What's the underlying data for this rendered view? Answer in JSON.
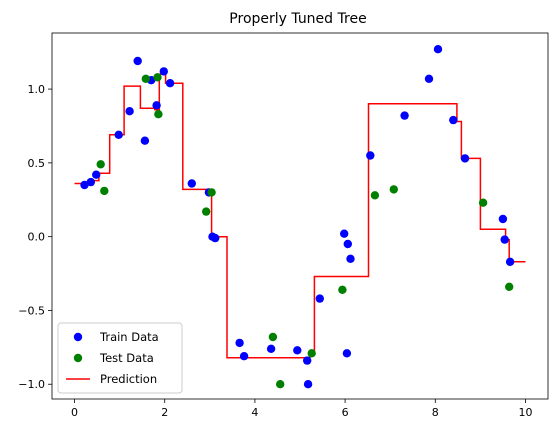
{
  "chart_data": {
    "type": "scatter",
    "title": "Properly Tuned Tree",
    "xlabel": "",
    "ylabel": "",
    "xlim": [
      -0.5,
      10.5
    ],
    "ylim": [
      -1.1,
      1.38
    ],
    "xticks": [
      0,
      2,
      4,
      6,
      8,
      10
    ],
    "yticks": [
      -1.0,
      -0.5,
      0.0,
      0.5,
      1.0
    ],
    "xtick_labels": [
      "0",
      "2",
      "4",
      "6",
      "8",
      "10"
    ],
    "ytick_labels": [
      "−1.0",
      "−0.5",
      "0.0",
      "0.5",
      "1.0"
    ],
    "grid": false,
    "legend_position": "lower-left",
    "series": [
      {
        "name": "Train Data",
        "kind": "scatter",
        "color": "#0000ff",
        "points": [
          [
            0.22,
            0.35
          ],
          [
            0.36,
            0.37
          ],
          [
            0.48,
            0.42
          ],
          [
            0.98,
            0.69
          ],
          [
            1.22,
            0.85
          ],
          [
            1.4,
            1.19
          ],
          [
            1.56,
            0.65
          ],
          [
            1.7,
            1.06
          ],
          [
            1.82,
            0.89
          ],
          [
            1.98,
            1.12
          ],
          [
            2.12,
            1.04
          ],
          [
            2.6,
            0.36
          ],
          [
            2.98,
            0.3
          ],
          [
            3.06,
            0.0
          ],
          [
            3.12,
            -0.01
          ],
          [
            3.66,
            -0.72
          ],
          [
            3.76,
            -0.81
          ],
          [
            4.36,
            -0.76
          ],
          [
            4.94,
            -0.77
          ],
          [
            5.16,
            -0.84
          ],
          [
            5.18,
            -1.0
          ],
          [
            5.44,
            -0.42
          ],
          [
            5.98,
            0.02
          ],
          [
            6.04,
            -0.79
          ],
          [
            6.06,
            -0.05
          ],
          [
            6.12,
            -0.15
          ],
          [
            6.56,
            0.55
          ],
          [
            7.32,
            0.82
          ],
          [
            7.86,
            1.07
          ],
          [
            8.06,
            1.27
          ],
          [
            8.4,
            0.79
          ],
          [
            8.66,
            0.53
          ],
          [
            9.5,
            0.12
          ],
          [
            9.54,
            -0.02
          ],
          [
            9.66,
            -0.17
          ]
        ]
      },
      {
        "name": "Test Data",
        "kind": "scatter",
        "color": "#008000",
        "points": [
          [
            0.58,
            0.49
          ],
          [
            0.66,
            0.31
          ],
          [
            1.58,
            1.07
          ],
          [
            1.84,
            1.08
          ],
          [
            1.86,
            0.83
          ],
          [
            2.92,
            0.17
          ],
          [
            3.04,
            0.3
          ],
          [
            4.4,
            -0.68
          ],
          [
            4.56,
            -1.0
          ],
          [
            5.26,
            -0.79
          ],
          [
            5.94,
            -0.36
          ],
          [
            6.66,
            0.28
          ],
          [
            7.08,
            0.32
          ],
          [
            9.06,
            0.23
          ],
          [
            9.64,
            -0.34
          ]
        ]
      },
      {
        "name": "Prediction",
        "kind": "step-line",
        "color": "#ff0000",
        "points": [
          [
            0.0,
            0.36
          ],
          [
            0.38,
            0.36
          ],
          [
            0.38,
            0.38
          ],
          [
            0.54,
            0.38
          ],
          [
            0.54,
            0.43
          ],
          [
            0.78,
            0.43
          ],
          [
            0.78,
            0.69
          ],
          [
            1.1,
            0.69
          ],
          [
            1.1,
            1.02
          ],
          [
            1.46,
            1.02
          ],
          [
            1.46,
            0.87
          ],
          [
            1.78,
            0.87
          ],
          [
            1.78,
            0.86
          ],
          [
            1.88,
            0.86
          ],
          [
            1.88,
            1.1
          ],
          [
            2.02,
            1.1
          ],
          [
            2.02,
            1.04
          ],
          [
            2.4,
            1.04
          ],
          [
            2.4,
            0.32
          ],
          [
            2.94,
            0.32
          ],
          [
            2.94,
            0.29
          ],
          [
            3.04,
            0.29
          ],
          [
            3.04,
            0.0
          ],
          [
            3.38,
            0.0
          ],
          [
            3.38,
            -0.82
          ],
          [
            5.22,
            -0.82
          ],
          [
            5.22,
            -0.78
          ],
          [
            5.32,
            -0.78
          ],
          [
            5.32,
            -0.27
          ],
          [
            6.52,
            -0.27
          ],
          [
            6.52,
            0.9
          ],
          [
            8.48,
            0.9
          ],
          [
            8.48,
            0.78
          ],
          [
            8.58,
            0.78
          ],
          [
            8.58,
            0.53
          ],
          [
            9.0,
            0.53
          ],
          [
            9.0,
            0.05
          ],
          [
            9.56,
            0.05
          ],
          [
            9.56,
            -0.02
          ],
          [
            9.64,
            -0.02
          ],
          [
            9.64,
            -0.17
          ],
          [
            10.0,
            -0.17
          ]
        ]
      }
    ]
  }
}
